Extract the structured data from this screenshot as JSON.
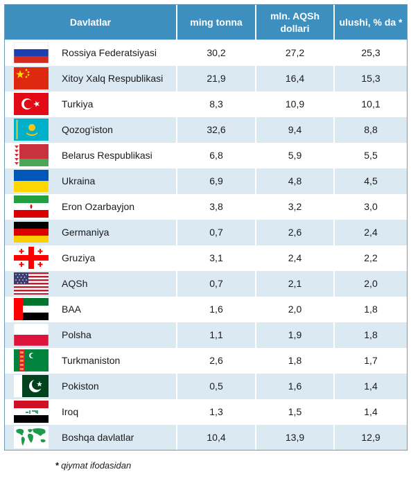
{
  "table": {
    "headers": [
      "Davlatlar",
      "ming tonna",
      "mln. AQSh dollari",
      "ulushi, % da *"
    ],
    "rows": [
      {
        "country": "Rossiya Federatsiyasi",
        "flag_icon": "russia-flag-icon",
        "tonnes": "30,2",
        "usd": "27,2",
        "share": "25,3"
      },
      {
        "country": "Xitoy Xalq Respublikasi",
        "flag_icon": "china-flag-icon",
        "tonnes": "21,9",
        "usd": "16,4",
        "share": "15,3"
      },
      {
        "country": "Turkiya",
        "flag_icon": "turkey-flag-icon",
        "tonnes": "8,3",
        "usd": "10,9",
        "share": "10,1"
      },
      {
        "country": "Qozog‘iston",
        "flag_icon": "kazakhstan-flag-icon",
        "tonnes": "32,6",
        "usd": "9,4",
        "share": "8,8"
      },
      {
        "country": "Belarus Respublikasi",
        "flag_icon": "belarus-flag-icon",
        "tonnes": "6,8",
        "usd": "5,9",
        "share": "5,5"
      },
      {
        "country": "Ukraina",
        "flag_icon": "ukraine-flag-icon",
        "tonnes": "6,9",
        "usd": "4,8",
        "share": "4,5"
      },
      {
        "country": "Eron Ozarbayjon",
        "flag_icon": "iran-flag-icon",
        "tonnes": "3,8",
        "usd": "3,2",
        "share": "3,0"
      },
      {
        "country": "Germaniya",
        "flag_icon": "germany-flag-icon",
        "tonnes": "0,7",
        "usd": "2,6",
        "share": "2,4"
      },
      {
        "country": "Gruziya",
        "flag_icon": "georgia-flag-icon",
        "tonnes": "3,1",
        "usd": "2,4",
        "share": "2,2"
      },
      {
        "country": "AQSh",
        "flag_icon": "usa-flag-icon",
        "tonnes": "0,7",
        "usd": "2,1",
        "share": "2,0"
      },
      {
        "country": "BAA",
        "flag_icon": "uae-flag-icon",
        "tonnes": "1,6",
        "usd": "2,0",
        "share": "1,8"
      },
      {
        "country": "Polsha",
        "flag_icon": "poland-flag-icon",
        "tonnes": "1,1",
        "usd": "1,9",
        "share": "1,8"
      },
      {
        "country": "Turkmaniston",
        "flag_icon": "turkmenistan-flag-icon",
        "tonnes": "2,6",
        "usd": "1,8",
        "share": "1,7"
      },
      {
        "country": "Pokiston",
        "flag_icon": "pakistan-flag-icon",
        "tonnes": "0,5",
        "usd": "1,6",
        "share": "1,4"
      },
      {
        "country": "Iroq",
        "flag_icon": "iraq-flag-icon",
        "tonnes": "1,3",
        "usd": "1,5",
        "share": "1,4"
      },
      {
        "country": "Boshqa davlatlar",
        "flag_icon": "world-map-icon",
        "tonnes": "10,4",
        "usd": "13,9",
        "share": "12,9"
      }
    ]
  },
  "colors": {
    "header_bg": "#3d8fbf",
    "row_alt_bg": "#dbe9f2"
  },
  "footnote": {
    "star": "*",
    "text": "qiymat ifodasidan"
  }
}
